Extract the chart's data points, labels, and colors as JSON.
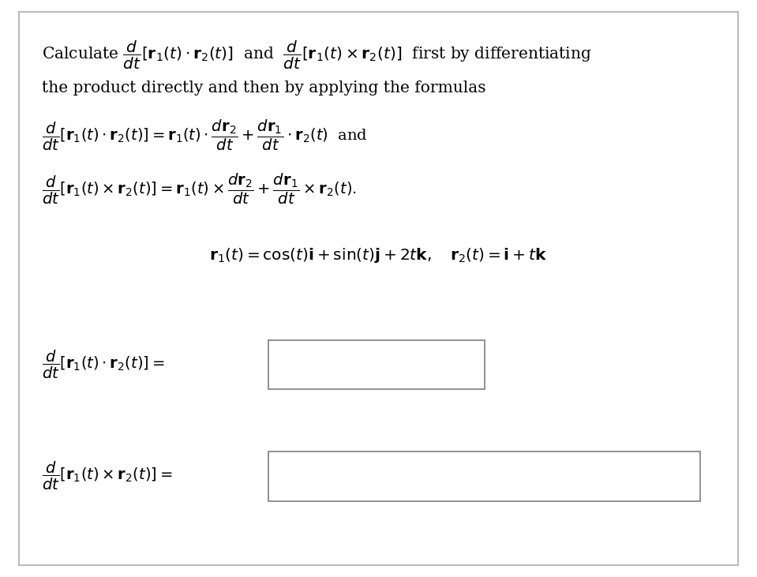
{
  "bg_color": "#ffffff",
  "border_color": "#bbbbbb",
  "text_color": "#000000",
  "fig_width": 9.59,
  "fig_height": 7.31,
  "line1a": "Calculate ",
  "line1b": "$\\dfrac{d}{dt}[\\mathbf{r}_1(t) \\cdot \\mathbf{r}_2(t)]$",
  "line1c": " and ",
  "line1d": "$\\dfrac{d}{dt}[\\mathbf{r}_1(t) \\times \\mathbf{r}_2(t)]$",
  "line1e": " first by differentiating",
  "line2": "the product directly and then by applying the formulas",
  "formula1": "$\\dfrac{d}{dt}[\\mathbf{r}_1(t) \\cdot \\mathbf{r}_2(t)] = \\mathbf{r}_1(t) \\cdot \\dfrac{d\\mathbf{r}_2}{dt} + \\dfrac{d\\mathbf{r}_1}{dt} \\cdot \\mathbf{r}_2(t)$  and",
  "formula2": "$\\dfrac{d}{dt}[\\mathbf{r}_1(t) \\times \\mathbf{r}_2(t)] = \\mathbf{r}_1(t) \\times \\dfrac{d\\mathbf{r}_2}{dt} + \\dfrac{d\\mathbf{r}_1}{dt} \\times \\mathbf{r}_2(t).$",
  "given": "$\\mathbf{r}_1(t) = \\cos(t)\\mathbf{i} + \\sin(t)\\mathbf{j} + 2t\\mathbf{k}, \\quad \\mathbf{r}_2(t) = \\mathbf{i} + t\\mathbf{k}$",
  "answer_label1": "$\\dfrac{d}{dt}[\\mathbf{r}_1(t) \\cdot \\mathbf{r}_2(t)] = $",
  "answer_label2": "$\\dfrac{d}{dt}[\\mathbf{r}_1(t) \\times \\mathbf{r}_2(t)] = $",
  "fs_main": 14.5,
  "fs_formula": 14.0
}
